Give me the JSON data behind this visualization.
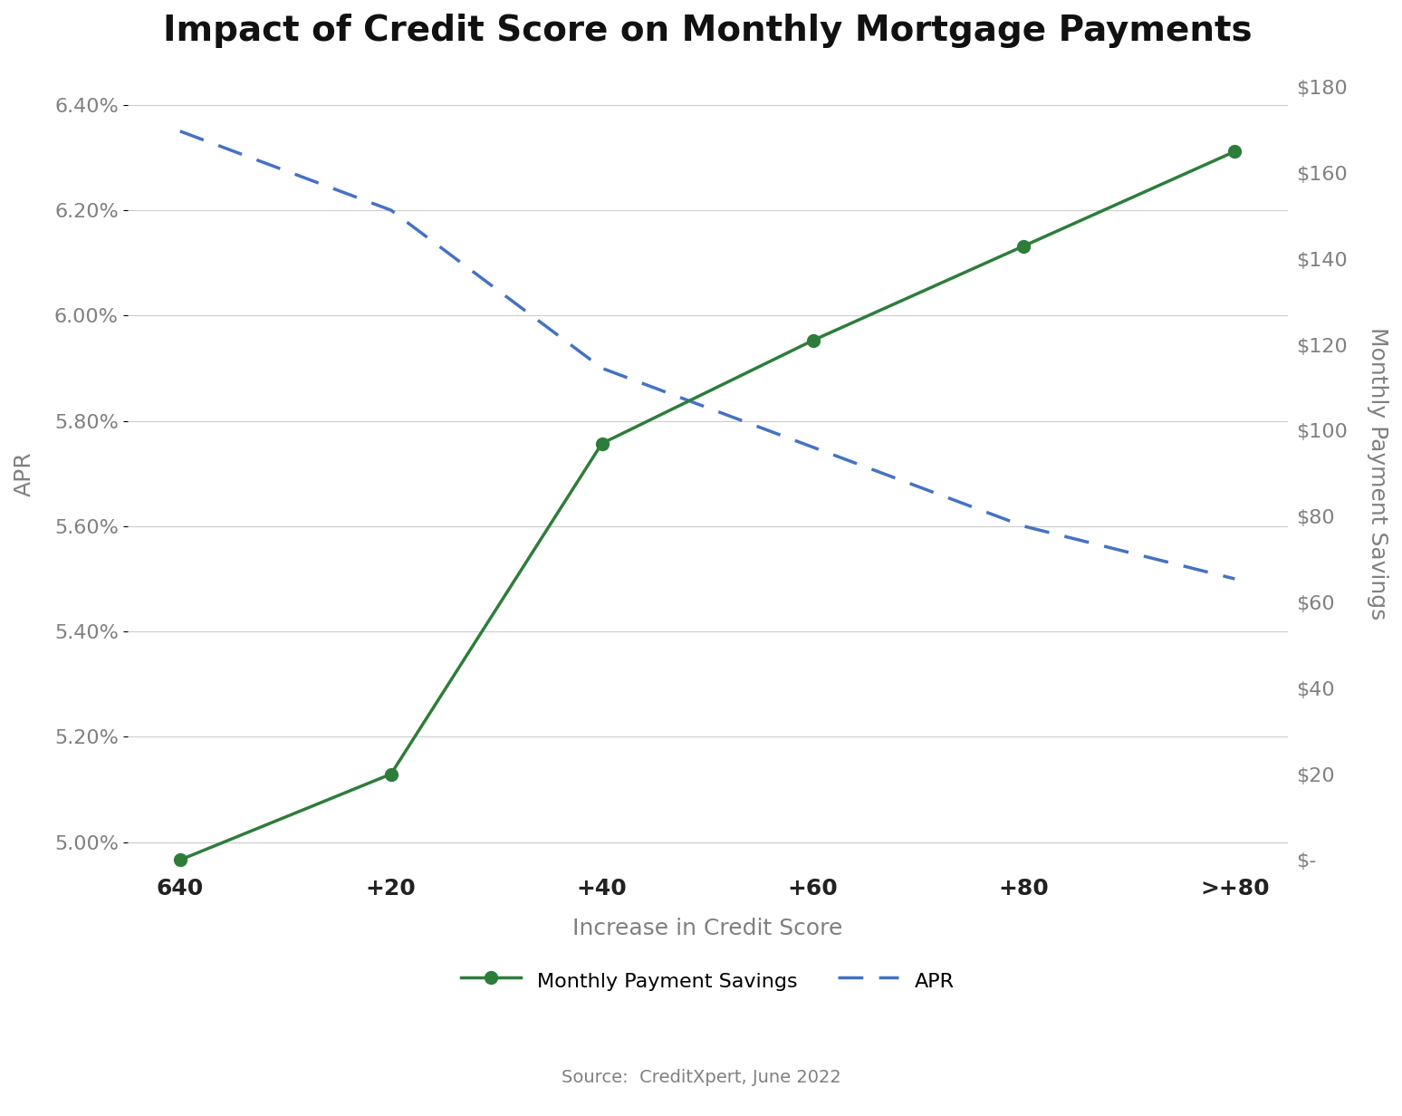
{
  "title": "Impact of Credit Score on Monthly Mortgage Payments",
  "xlabel": "Increase in Credit Score",
  "ylabel_left": "APR",
  "ylabel_right": "Monthly Payment Savings",
  "x_labels": [
    "640",
    "+20",
    "+40",
    "+60",
    "+80",
    ">+80"
  ],
  "apr_values": [
    0.0635,
    0.062,
    0.059,
    0.0575,
    0.056,
    0.055
  ],
  "savings_values": [
    0,
    20,
    97,
    121,
    143,
    165
  ],
  "apr_ylim": [
    0.0495,
    0.0645
  ],
  "apr_yticks": [
    0.05,
    0.052,
    0.054,
    0.056,
    0.058,
    0.06,
    0.062,
    0.064
  ],
  "savings_ylim": [
    -2,
    182
  ],
  "savings_yticks": [
    0,
    20,
    40,
    60,
    80,
    100,
    120,
    140,
    160,
    180
  ],
  "savings_ytick_labels": [
    "$-",
    "$20",
    "$40",
    "$60",
    "$80",
    "$100",
    "$120",
    "$140",
    "$160",
    "$180"
  ],
  "green_color": "#2d7d3a",
  "blue_color": "#4472C4",
  "background_color": "#ffffff",
  "grid_color": "#cccccc",
  "tick_label_color": "#808080",
  "title_fontsize": 28,
  "axis_label_fontsize": 18,
  "tick_fontsize": 16,
  "legend_fontsize": 16,
  "source_text": "Source:  CreditXpert, June 2022"
}
